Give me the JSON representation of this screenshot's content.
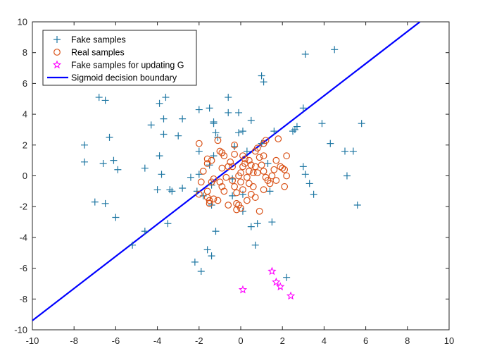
{
  "chart_data": {
    "type": "scatter",
    "title": "",
    "xlabel": "",
    "ylabel": "",
    "xlim": [
      -10,
      10
    ],
    "ylim": [
      -10,
      10
    ],
    "xticks": [
      -10,
      -8,
      -6,
      -4,
      -2,
      0,
      2,
      4,
      6,
      8,
      10
    ],
    "yticks": [
      -10,
      -8,
      -6,
      -4,
      -2,
      0,
      2,
      4,
      6,
      8,
      10
    ],
    "grid": false,
    "legend_position": "top-left",
    "series": [
      {
        "name": "Fake samples",
        "marker": "plus",
        "color": "#1f77a3",
        "points": [
          [
            -7.5,
            2.0
          ],
          [
            -7.5,
            0.9
          ],
          [
            -6.8,
            5.1
          ],
          [
            -6.5,
            4.9
          ],
          [
            -6.3,
            2.5
          ],
          [
            -6.6,
            0.8
          ],
          [
            -6.1,
            1.0
          ],
          [
            -5.9,
            0.4
          ],
          [
            -7.0,
            -1.7
          ],
          [
            -6.5,
            -1.8
          ],
          [
            -6.0,
            -2.7
          ],
          [
            -5.2,
            -4.5
          ],
          [
            -4.6,
            -3.6
          ],
          [
            -4.6,
            0.5
          ],
          [
            -4.3,
            3.3
          ],
          [
            -3.9,
            4.7
          ],
          [
            -3.6,
            5.1
          ],
          [
            -3.7,
            3.7
          ],
          [
            -3.7,
            2.7
          ],
          [
            -3.9,
            1.3
          ],
          [
            -3.8,
            0.1
          ],
          [
            -4.0,
            -0.9
          ],
          [
            -3.4,
            -0.9
          ],
          [
            -3.3,
            -1.0
          ],
          [
            -3.5,
            -3.1
          ],
          [
            -3.0,
            2.6
          ],
          [
            -2.8,
            3.7
          ],
          [
            -2.4,
            -0.1
          ],
          [
            -2.8,
            -0.8
          ],
          [
            -2.0,
            4.3
          ],
          [
            -2.0,
            1.6
          ],
          [
            -2.0,
            0.1
          ],
          [
            -2.1,
            -1.0
          ],
          [
            -1.5,
            4.4
          ],
          [
            -1.3,
            3.5
          ],
          [
            -1.3,
            3.4
          ],
          [
            -1.2,
            2.8
          ],
          [
            -1.1,
            2.5
          ],
          [
            -1.3,
            1.3
          ],
          [
            -1.5,
            0.7
          ],
          [
            -1.4,
            -0.6
          ],
          [
            -1.8,
            -1.3
          ],
          [
            -1.4,
            -1.9
          ],
          [
            -1.2,
            -3.6
          ],
          [
            -1.6,
            -4.8
          ],
          [
            -1.4,
            -5.2
          ],
          [
            -2.2,
            -5.6
          ],
          [
            -1.9,
            -6.2
          ],
          [
            -0.6,
            5.1
          ],
          [
            -0.6,
            4.1
          ],
          [
            -0.1,
            4.1
          ],
          [
            -0.1,
            2.8
          ],
          [
            0.1,
            2.9
          ],
          [
            -0.3,
            1.9
          ],
          [
            0.3,
            1.6
          ],
          [
            -0.4,
            -0.2
          ],
          [
            -0.4,
            -1.3
          ],
          [
            0.1,
            -2.3
          ],
          [
            0.1,
            -1.2
          ],
          [
            0.5,
            3.6
          ],
          [
            1.0,
            6.5
          ],
          [
            1.1,
            6.1
          ],
          [
            1.0,
            2.1
          ],
          [
            1.6,
            2.9
          ],
          [
            1.3,
            0.8
          ],
          [
            1.4,
            -1.0
          ],
          [
            0.5,
            -3.3
          ],
          [
            0.8,
            -3.1
          ],
          [
            1.5,
            -3.0
          ],
          [
            0.7,
            -4.5
          ],
          [
            2.2,
            -6.6
          ],
          [
            2.5,
            2.9
          ],
          [
            2.7,
            3.2
          ],
          [
            2.6,
            3.0
          ],
          [
            3.0,
            4.4
          ],
          [
            3.0,
            0.6
          ],
          [
            3.1,
            0.1
          ],
          [
            3.3,
            -0.5
          ],
          [
            3.5,
            -1.2
          ],
          [
            3.1,
            7.9
          ],
          [
            3.9,
            3.4
          ],
          [
            4.3,
            2.1
          ],
          [
            4.5,
            8.2
          ],
          [
            5.0,
            1.6
          ],
          [
            5.4,
            1.6
          ],
          [
            5.1,
            0.0
          ],
          [
            5.8,
            3.4
          ],
          [
            5.6,
            -1.9
          ]
        ]
      },
      {
        "name": "Real samples",
        "marker": "circle",
        "color": "#d95319",
        "points": [
          [
            -2.0,
            2.1
          ],
          [
            -1.8,
            0.3
          ],
          [
            -1.6,
            0.8
          ],
          [
            -1.6,
            1.1
          ],
          [
            -1.4,
            -0.4
          ],
          [
            -1.3,
            -0.2
          ],
          [
            -1.4,
            1.0
          ],
          [
            -1.9,
            -0.4
          ],
          [
            -2.0,
            -1.2
          ],
          [
            -1.6,
            -1.0
          ],
          [
            -1.6,
            -1.4
          ],
          [
            -1.5,
            -1.6
          ],
          [
            -1.3,
            -1.5
          ],
          [
            -1.5,
            -1.8
          ],
          [
            -1.1,
            -1.6
          ],
          [
            -1.0,
            -0.4
          ],
          [
            -0.9,
            0.5
          ],
          [
            -0.8,
            1.3
          ],
          [
            -0.9,
            1.5
          ],
          [
            -1.0,
            1.6
          ],
          [
            -1.1,
            2.3
          ],
          [
            -0.9,
            -0.7
          ],
          [
            -0.8,
            -1.0
          ],
          [
            -0.6,
            0.6
          ],
          [
            -0.5,
            0.9
          ],
          [
            -0.4,
            0.6
          ],
          [
            -0.3,
            1.4
          ],
          [
            -0.3,
            2.0
          ],
          [
            -0.4,
            -0.3
          ],
          [
            -0.3,
            -0.7
          ],
          [
            -0.2,
            -1.1
          ],
          [
            -0.2,
            -1.8
          ],
          [
            -0.1,
            -1.9
          ],
          [
            -0.2,
            -2.2
          ],
          [
            0.0,
            -2.1
          ],
          [
            0.1,
            -0.9
          ],
          [
            0.0,
            -0.4
          ],
          [
            0.0,
            0.2
          ],
          [
            0.1,
            0.6
          ],
          [
            0.2,
            0.8
          ],
          [
            0.2,
            1.1
          ],
          [
            0.1,
            1.3
          ],
          [
            0.4,
            1.0
          ],
          [
            0.5,
            0.7
          ],
          [
            0.4,
            0.3
          ],
          [
            0.3,
            -0.1
          ],
          [
            0.4,
            -0.5
          ],
          [
            0.6,
            -0.7
          ],
          [
            0.5,
            -1.2
          ],
          [
            0.7,
            -1.4
          ],
          [
            0.9,
            -2.3
          ],
          [
            0.8,
            0.2
          ],
          [
            0.7,
            0.6
          ],
          [
            0.9,
            1.2
          ],
          [
            0.7,
            1.6
          ],
          [
            0.8,
            1.8
          ],
          [
            1.1,
            2.1
          ],
          [
            1.2,
            2.3
          ],
          [
            1.1,
            1.3
          ],
          [
            1.0,
            0.7
          ],
          [
            1.1,
            0.3
          ],
          [
            1.2,
            -0.1
          ],
          [
            1.3,
            -0.3
          ],
          [
            1.4,
            -0.5
          ],
          [
            1.1,
            -0.9
          ],
          [
            1.6,
            0.4
          ],
          [
            1.7,
            1.0
          ],
          [
            1.8,
            2.4
          ],
          [
            1.9,
            0.6
          ],
          [
            2.0,
            0.5
          ],
          [
            2.1,
            0.4
          ],
          [
            2.2,
            0.0
          ],
          [
            2.1,
            -0.7
          ],
          [
            2.2,
            1.3
          ],
          [
            1.7,
            -0.3
          ],
          [
            1.5,
            0.0
          ],
          [
            -0.6,
            -1.9
          ],
          [
            0.3,
            -1.6
          ],
          [
            -0.1,
            0.0
          ],
          [
            0.6,
            0.2
          ],
          [
            -0.7,
            -0.1
          ]
        ]
      },
      {
        "name": "Fake samples for updating G",
        "marker": "star",
        "color": "#ff00ff",
        "points": [
          [
            0.1,
            -7.4
          ],
          [
            1.5,
            -6.2
          ],
          [
            1.7,
            -6.9
          ],
          [
            1.9,
            -7.2
          ],
          [
            2.4,
            -7.8
          ]
        ]
      },
      {
        "name": "Sigmoid decision boundary",
        "marker": "line",
        "color": "#0000ff",
        "points": [
          [
            -10,
            -9.4
          ],
          [
            8.6,
            10.0
          ]
        ]
      }
    ]
  }
}
